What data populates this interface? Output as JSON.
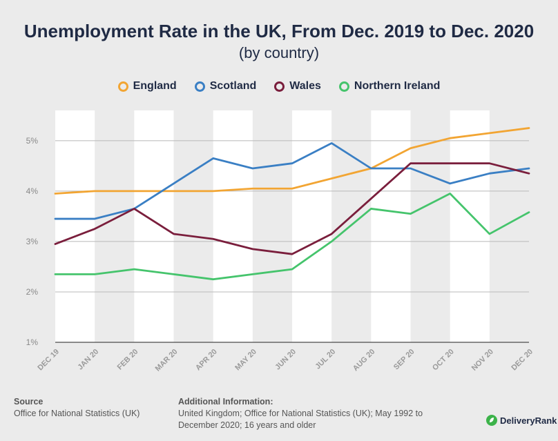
{
  "chart_data": {
    "type": "line",
    "title": "Unemployment Rate in the UK, From Dec. 2019 to Dec. 2020",
    "subtitle": "(by country)",
    "categories": [
      "DEC 19",
      "JAN 20",
      "FEB 20",
      "MAR 20",
      "APR 20",
      "MAY 20",
      "JUN 20",
      "JUL 20",
      "AUG 20",
      "SEP 20",
      "OCT 20",
      "NOV 20",
      "DEC 20"
    ],
    "y_ticks": [
      "1%",
      "2%",
      "3%",
      "4%",
      "5%"
    ],
    "ylim": [
      1,
      5.6
    ],
    "legend_position": "top-center",
    "series": [
      {
        "name": "England",
        "color": "#f2a533",
        "values": [
          3.95,
          4.0,
          4.0,
          4.0,
          4.0,
          4.05,
          4.05,
          4.25,
          4.45,
          4.85,
          5.05,
          5.15,
          5.25
        ]
      },
      {
        "name": "Scotland",
        "color": "#3a7fc4",
        "values": [
          3.45,
          3.45,
          3.65,
          4.15,
          4.65,
          4.45,
          4.55,
          4.95,
          4.45,
          4.45,
          4.15,
          4.35,
          4.45
        ]
      },
      {
        "name": "Wales",
        "color": "#7a1e3c",
        "values": [
          2.95,
          3.25,
          3.65,
          3.15,
          3.05,
          2.85,
          2.75,
          3.15,
          3.85,
          4.55,
          4.55,
          4.55,
          4.35
        ]
      },
      {
        "name": "Northern Ireland",
        "color": "#45c46c",
        "values": [
          2.35,
          2.35,
          2.45,
          2.35,
          2.25,
          2.35,
          2.45,
          3.0,
          3.65,
          3.55,
          3.95,
          3.15,
          3.58
        ]
      }
    ]
  },
  "footer": {
    "source_heading": "Source",
    "source_text": "Office for National Statistics (UK)",
    "info_heading": "Additional Information:",
    "info_line1": "United Kingdom; Office for National Statistics (UK); May 1992 to",
    "info_line2": "December 2020; 16 years and older"
  },
  "brand": {
    "name": "DeliveryRank",
    "icon": "leaf-logo-icon"
  }
}
